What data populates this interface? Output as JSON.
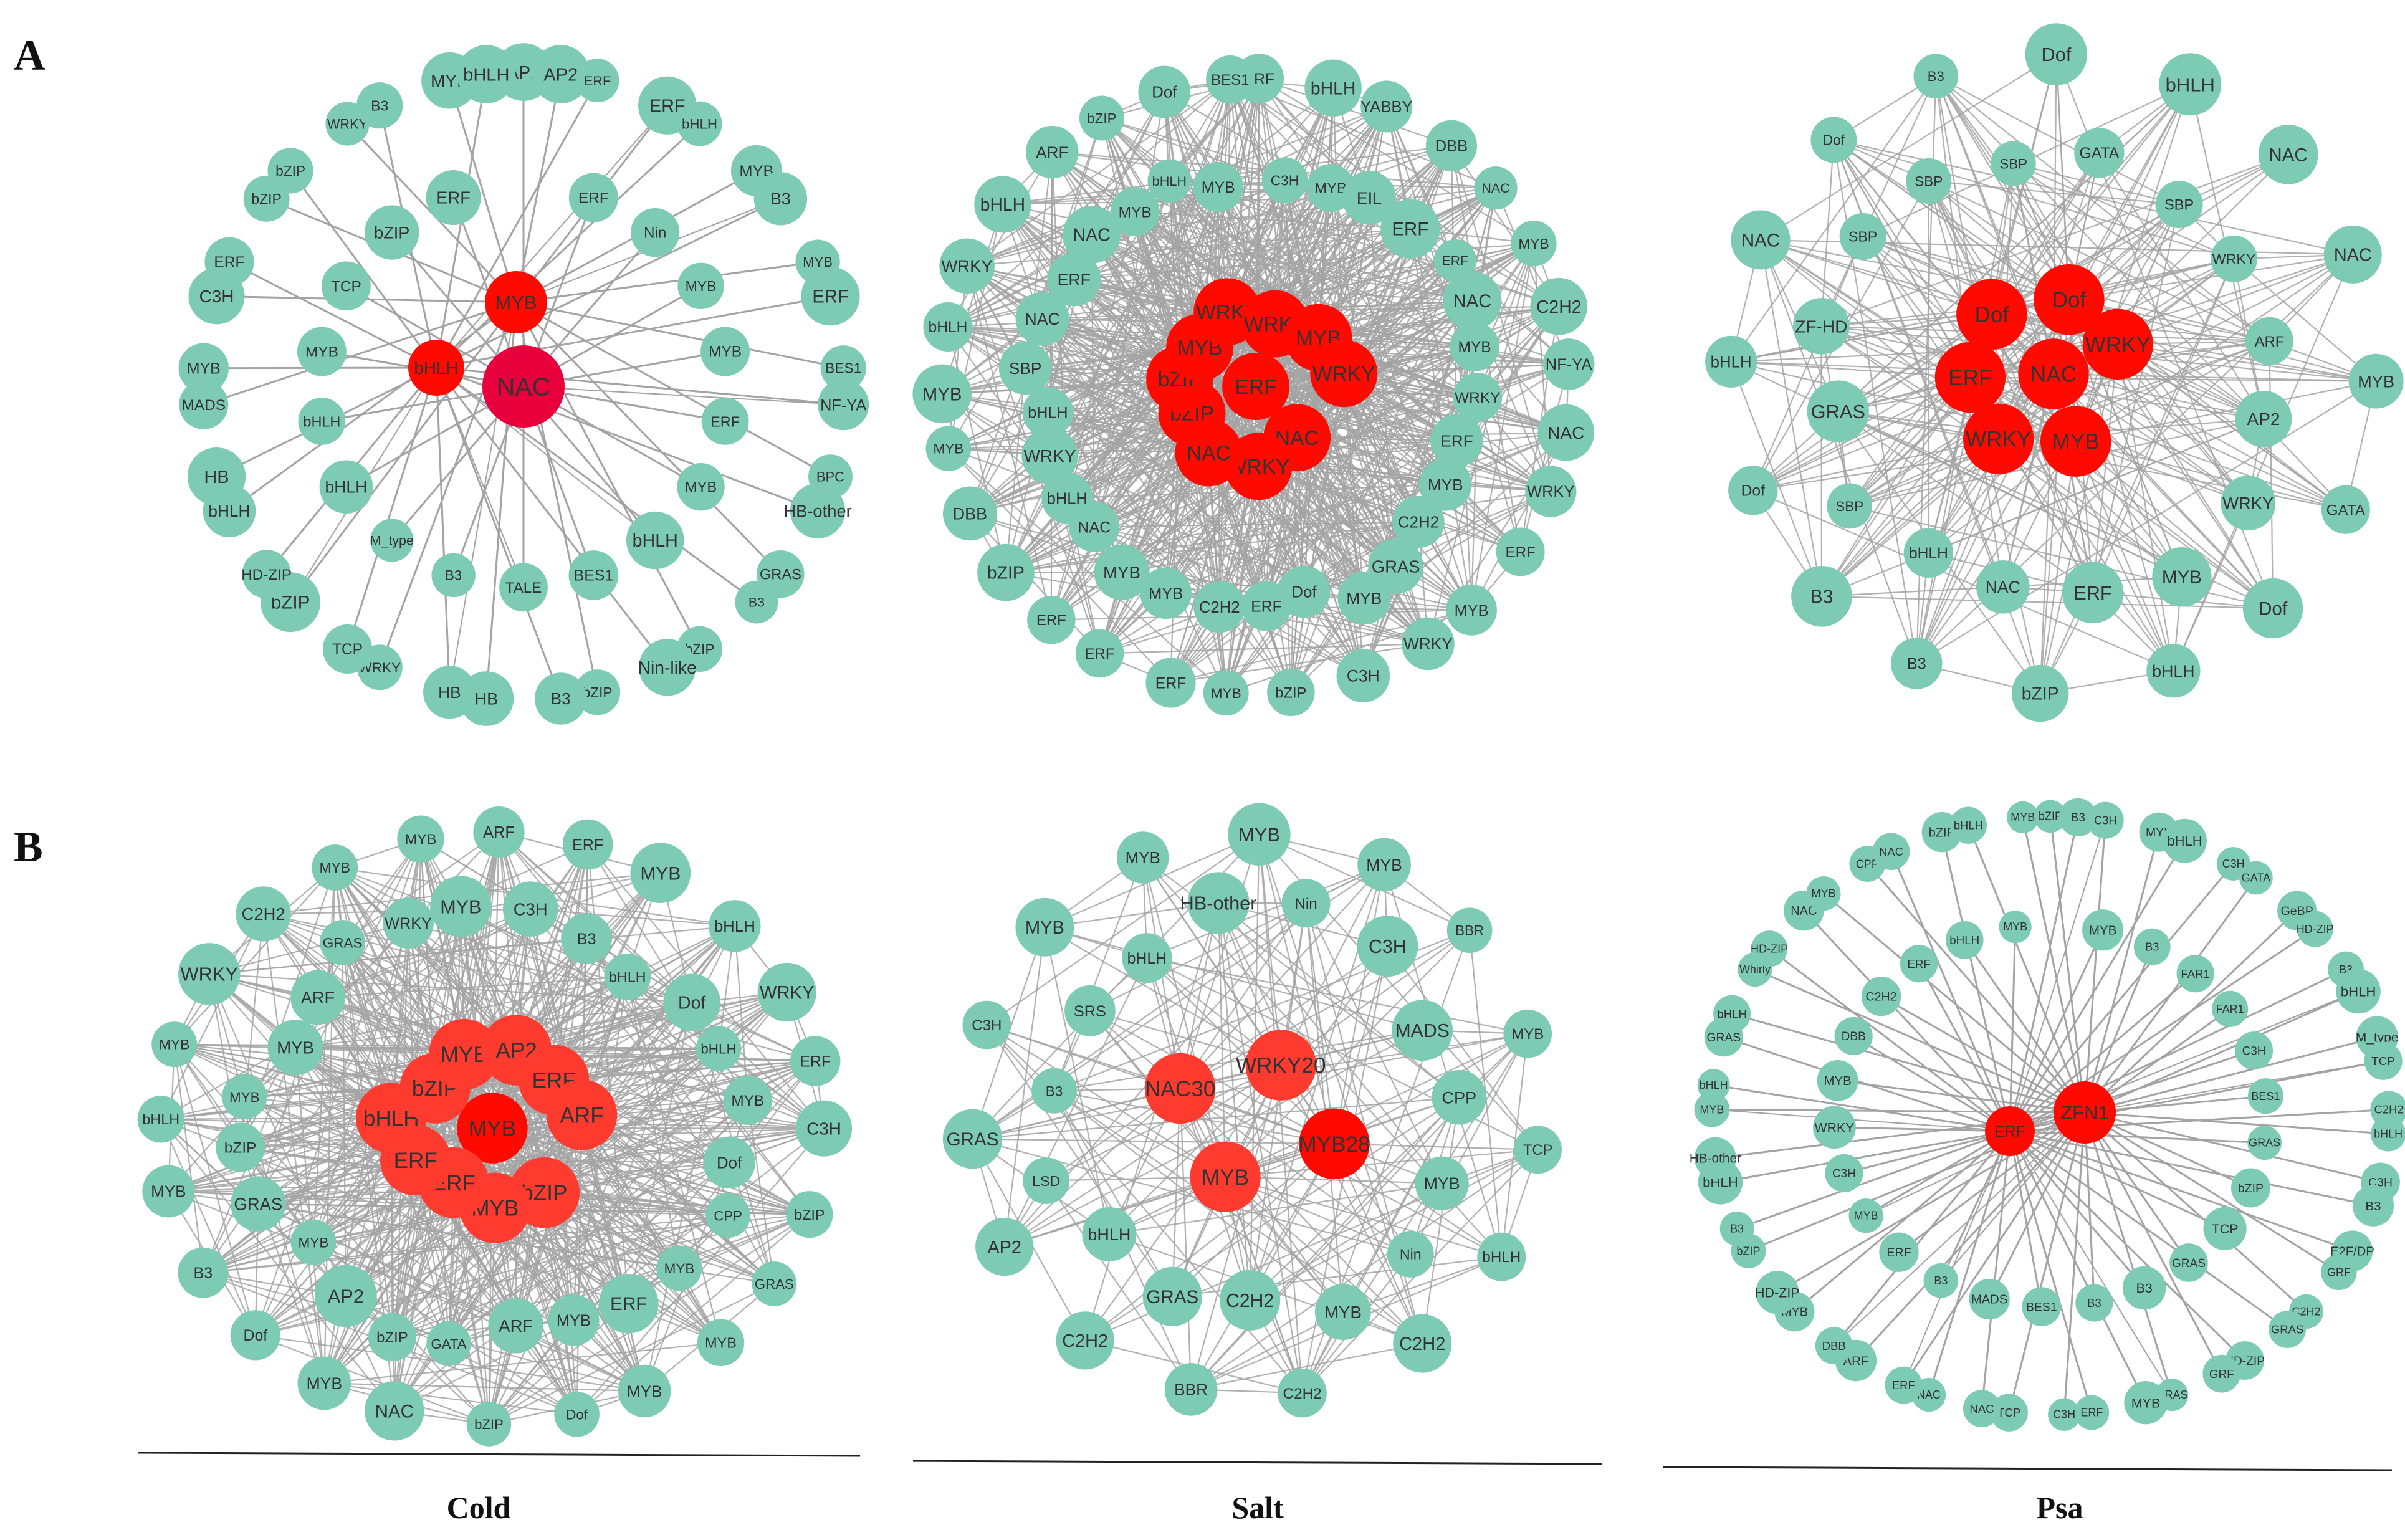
{
  "panels": {
    "a": "A",
    "b": "B"
  },
  "conditions": [
    "Cold",
    "Salt",
    "Psa"
  ],
  "colors": {
    "node": "#7ecbb4",
    "hub": "#ff0a00",
    "hub_alt": "#e8003c",
    "hub_soft": "#ff3b2f",
    "edge": "#a3a3a3",
    "label": "#333333"
  },
  "networks": [
    {
      "id": "A-cold",
      "layout": "star",
      "hubs": [
        "NAC",
        "MYB",
        "bHLH"
      ],
      "nodes": [
        "AP2",
        "AP2",
        "ERF",
        "ERF",
        "ERF",
        "bHLH",
        "Nin",
        "MYB",
        "B3",
        "MYB",
        "MYB",
        "ERF",
        "MYB",
        "BES1",
        "NF-YA",
        "ERF",
        "BPC",
        "HB-other",
        "MYB",
        "GRAS",
        "B3",
        "bHLH",
        "bZIP",
        "Nin-like",
        "BES1",
        "bZIP",
        "B3",
        "TALE",
        "HB",
        "HB",
        "B3",
        "WRKY",
        "TCP",
        "M_type",
        "bZIP",
        "HD-ZIP",
        "bHLH",
        "bHLH",
        "HB",
        "bHLH",
        "MADS",
        "MYB",
        "MYB",
        "C3H",
        "ERF",
        "TCP",
        "bZIP",
        "bZIP",
        "bZIP",
        "WRKY",
        "B3",
        "ERF",
        "MYB",
        "bHLH"
      ]
    },
    {
      "id": "A-salt",
      "layout": "dense",
      "hubs": [
        "ERF",
        "NAC",
        "WRKY",
        "NAC",
        "bZIP",
        "bZIP",
        "MYB",
        "WRKY",
        "WRKY",
        "MYB",
        "WRKY"
      ],
      "nodes": [
        "ERF",
        "C3H",
        "bHLH",
        "MYB",
        "YABBY",
        "EIL",
        "DBB",
        "ERF",
        "NAC",
        "ERF",
        "MYB",
        "NAC",
        "C2H2",
        "MYB",
        "NF-YA",
        "WRKY",
        "NAC",
        "ERF",
        "WRKY",
        "MYB",
        "ERF",
        "C2H2",
        "MYB",
        "GRAS",
        "WRKY",
        "MYB",
        "C3H",
        "Dof",
        "bZIP",
        "ERF",
        "MYB",
        "C2H2",
        "ERF",
        "MYB",
        "ERF",
        "MYB",
        "ERF",
        "NAC",
        "bZIP",
        "bHLH",
        "DBB",
        "WRKY",
        "MYB",
        "bHLH",
        "MYB",
        "SBP",
        "bHLH",
        "NAC",
        "WRKY",
        "ERF",
        "bHLH",
        "NAC",
        "ARF",
        "MYB",
        "bZIP",
        "bHLH",
        "Dof",
        "MYB",
        "BES1"
      ]
    },
    {
      "id": "A-psa",
      "layout": "dense",
      "hubs": [
        "NAC",
        "MYB",
        "WRKY",
        "ERF",
        "Dof",
        "Dof",
        "WRKY"
      ],
      "nodes": [
        "Dof",
        "GATA",
        "bHLH",
        "SBP",
        "NAC",
        "WRKY",
        "NAC",
        "ARF",
        "MYB",
        "AP2",
        "GATA",
        "WRKY",
        "Dof",
        "MYB",
        "bHLH",
        "ERF",
        "bZIP",
        "NAC",
        "B3",
        "bHLH",
        "B3",
        "SBP",
        "Dof",
        "GRAS",
        "bHLH",
        "ZF-HD",
        "NAC",
        "SBP",
        "Dof",
        "SBP",
        "B3",
        "SBP"
      ]
    },
    {
      "id": "B-cold",
      "layout": "dense",
      "hubs": [
        "MYB",
        "bZIP",
        "MYB",
        "ERF",
        "ERF",
        "bHLH",
        "bZIP",
        "MYB",
        "AP2",
        "ERF",
        "ARF"
      ],
      "nodes": [
        "ARF",
        "C3H",
        "ERF",
        "B3",
        "MYB",
        "bHLH",
        "bHLH",
        "Dof",
        "WRKY",
        "bHLH",
        "ERF",
        "MYB",
        "C3H",
        "Dof",
        "bZIP",
        "CPP",
        "GRAS",
        "MYB",
        "MYB",
        "ERF",
        "MYB",
        "MYB",
        "Dof",
        "ARF",
        "bZIP",
        "GATA",
        "NAC",
        "bZIP",
        "MYB",
        "AP2",
        "Dof",
        "MYB",
        "B3",
        "GRAS",
        "MYB",
        "bZIP",
        "bHLH",
        "MYB",
        "MYB",
        "MYB",
        "WRKY",
        "ARF",
        "C2H2",
        "GRAS",
        "MYB",
        "WRKY",
        "MYB",
        "MYB"
      ]
    },
    {
      "id": "B-salt",
      "layout": "dense",
      "hubs": [
        "MYB28",
        "MYB",
        "NAC30",
        "WRKY20"
      ],
      "nodes": [
        "MYB",
        "Nin",
        "MYB",
        "C3H",
        "BBR",
        "MADS",
        "MYB",
        "CPP",
        "TCP",
        "MYB",
        "bHLH",
        "Nin",
        "C2H2",
        "MYB",
        "C2H2",
        "C2H2",
        "BBR",
        "GRAS",
        "C2H2",
        "bHLH",
        "AP2",
        "LSD",
        "GRAS",
        "B3",
        "C3H",
        "SRS",
        "MYB",
        "bHLH",
        "MYB",
        "HB-other"
      ]
    },
    {
      "id": "B-psa",
      "layout": "star",
      "hubs": [
        "ZFN1",
        "ERF"
      ],
      "nodes": [
        "bZIP",
        "B3",
        "C3H",
        "MYB",
        "MYB",
        "bHLH",
        "B3",
        "C3H",
        "GATA",
        "FAR1",
        "GeBP",
        "HD-ZIP",
        "FAR1",
        "B3",
        "bHLH",
        "C3H",
        "M_type",
        "TCP",
        "BES1",
        "C2H2",
        "bHLH",
        "GRAS",
        "C3H",
        "B3",
        "bZIP",
        "E2F/DP",
        "GRF",
        "TCP",
        "C2H2",
        "GRAS",
        "GRAS",
        "HD-ZIP",
        "GRF",
        "B3",
        "GRAS",
        "MYB",
        "B3",
        "ERF",
        "C3H",
        "BES1",
        "TCP",
        "NAC",
        "MADS",
        "NAC",
        "ERF",
        "B3",
        "ARF",
        "DBB",
        "ERF",
        "MYB",
        "HD-ZIP",
        "MYB",
        "bZIP",
        "B3",
        "C3H",
        "bHLH",
        "HB-other",
        "WRKY",
        "MYB",
        "bHLH",
        "MYB",
        "GRAS",
        "bHLH",
        "DBB",
        "Whirly",
        "HD-ZIP",
        "C2H2",
        "NAC",
        "MYB",
        "ERF",
        "CPP",
        "NAC",
        "bHLH",
        "bZIP",
        "bHLH",
        "MYB",
        "MYB"
      ]
    }
  ]
}
